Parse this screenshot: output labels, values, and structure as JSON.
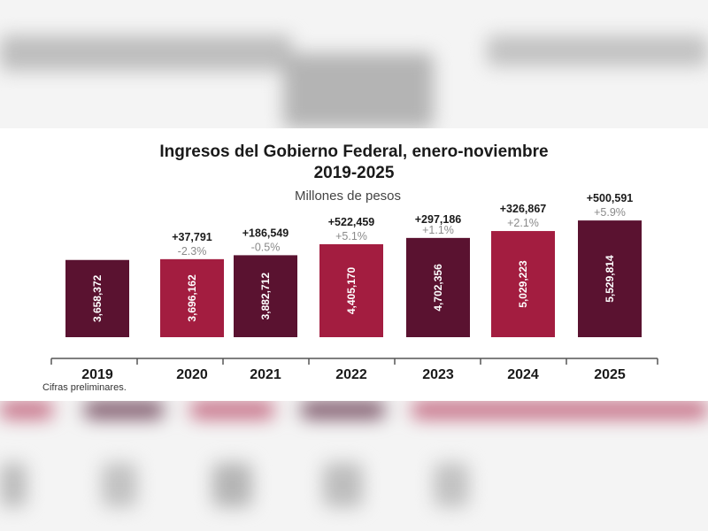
{
  "chart_data": {
    "type": "bar",
    "title": "Ingresos del Gobierno Federal, enero-noviembre",
    "subtitle": "2019-2025",
    "ylabel": "Millones de pesos",
    "xlabel": "",
    "ylim": [
      0,
      6000000
    ],
    "grid": false,
    "categories": [
      "2019",
      "2020",
      "2021",
      "2022",
      "2023",
      "2024",
      "2025"
    ],
    "values": [
      3658372,
      3696162,
      3882712,
      4405170,
      4702356,
      5029223,
      5529814
    ],
    "value_labels": [
      "3,658,372",
      "3,696,162",
      "3,882,712",
      "4,405,170",
      "4,702,356",
      "5,029,223",
      "5,529,814"
    ],
    "change_labels": [
      "",
      "+37,791",
      "+186,549",
      "+522,459",
      "+297,186",
      "+326,867",
      "+500,591"
    ],
    "pct_labels": [
      "",
      "-2.3%",
      "-0.5%",
      "+5.1%",
      "+1.1%",
      "+2.1%",
      "+5.9%"
    ],
    "bar_colors": [
      "#5a1230",
      "#a31d40",
      "#5a1230",
      "#a31d40",
      "#5a1230",
      "#a31d40",
      "#5a1230"
    ],
    "footnote": "Cifras preliminares."
  }
}
